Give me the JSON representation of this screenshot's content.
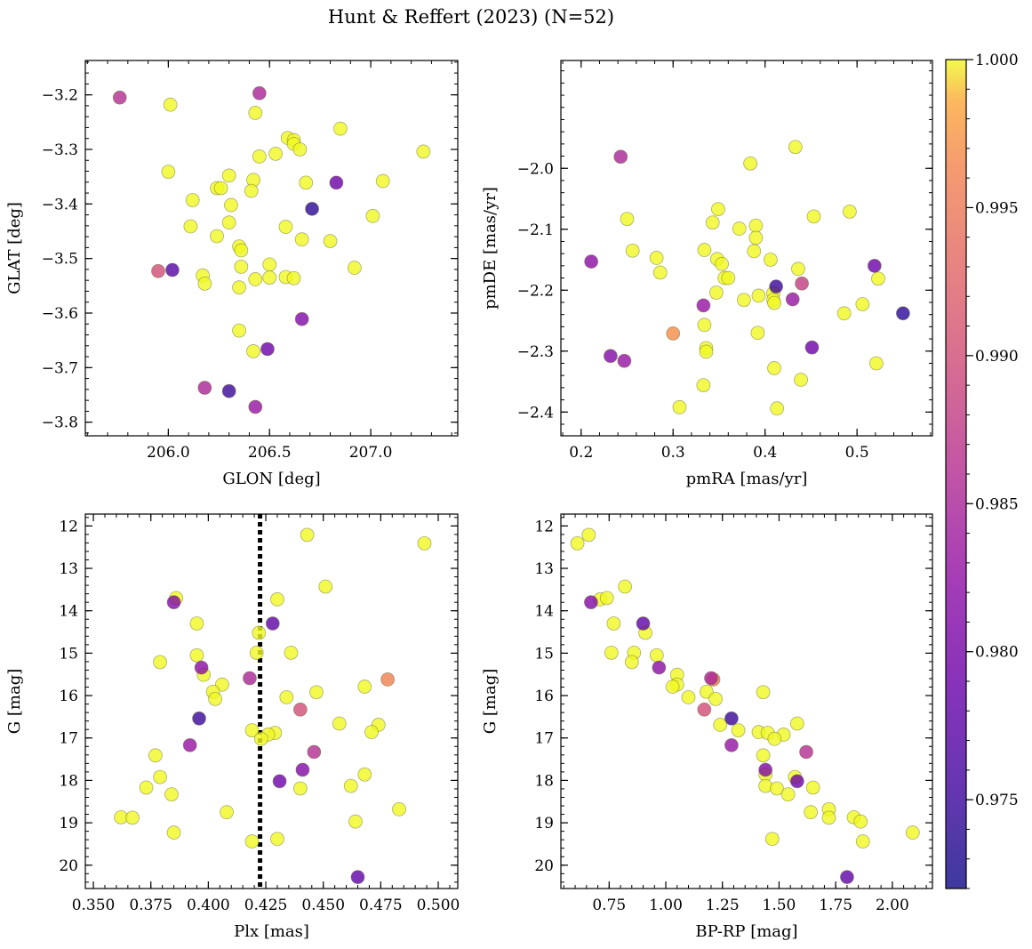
{
  "figure": {
    "title": "Hunt & Reffert (2023) (N=52)"
  },
  "colorbar": {
    "vmin": 0.972,
    "vmax": 1.0,
    "ticks": [
      "0.975",
      "0.980",
      "0.985",
      "0.990",
      "0.995",
      "1.000"
    ],
    "colormap": "plasma"
  },
  "chart_data": [
    {
      "type": "scatter",
      "title": "",
      "xlabel": "GLON [deg]",
      "ylabel": "GLAT [deg]",
      "xlim": [
        205.59,
        207.43
      ],
      "ylim": [
        -3.825,
        -3.137
      ],
      "x_inverted": false,
      "y_inverted": false,
      "xticks": [
        "206.0",
        "206.5",
        "207.0"
      ],
      "yticks": [
        "−3.8",
        "−3.7",
        "−3.6",
        "−3.5",
        "−3.4",
        "−3.3",
        "−3.2"
      ],
      "points": [
        [
          205.76,
          -3.205,
          0.986
        ],
        [
          206.01,
          -3.218,
          1.0
        ],
        [
          206.45,
          -3.197,
          0.985
        ],
        [
          206.43,
          -3.233,
          1.0
        ],
        [
          206.85,
          -3.262,
          1.0
        ],
        [
          206.59,
          -3.279,
          1.0
        ],
        [
          206.62,
          -3.283,
          1.0
        ],
        [
          206.62,
          -3.29,
          1.0
        ],
        [
          206.65,
          -3.3,
          1.0
        ],
        [
          206.53,
          -3.308,
          1.0
        ],
        [
          206.45,
          -3.313,
          1.0
        ],
        [
          207.26,
          -3.304,
          1.0
        ],
        [
          206.0,
          -3.341,
          1.0
        ],
        [
          206.3,
          -3.348,
          1.0
        ],
        [
          206.42,
          -3.356,
          1.0
        ],
        [
          206.68,
          -3.361,
          1.0
        ],
        [
          206.83,
          -3.361,
          0.979
        ],
        [
          207.06,
          -3.358,
          1.0
        ],
        [
          206.24,
          -3.371,
          1.0
        ],
        [
          206.26,
          -3.371,
          1.0
        ],
        [
          206.41,
          -3.376,
          1.0
        ],
        [
          206.12,
          -3.393,
          1.0
        ],
        [
          206.31,
          -3.402,
          1.0
        ],
        [
          206.71,
          -3.409,
          0.974
        ],
        [
          207.01,
          -3.422,
          1.0
        ],
        [
          206.3,
          -3.434,
          1.0
        ],
        [
          206.11,
          -3.441,
          1.0
        ],
        [
          206.58,
          -3.442,
          1.0
        ],
        [
          206.24,
          -3.459,
          1.0
        ],
        [
          206.66,
          -3.465,
          1.0
        ],
        [
          206.8,
          -3.468,
          1.0
        ],
        [
          206.35,
          -3.478,
          1.0
        ],
        [
          206.36,
          -3.485,
          1.0
        ],
        [
          206.5,
          -3.511,
          1.0
        ],
        [
          206.92,
          -3.517,
          1.0
        ],
        [
          206.36,
          -3.515,
          1.0
        ],
        [
          205.95,
          -3.523,
          0.99
        ],
        [
          206.02,
          -3.521,
          0.977
        ],
        [
          206.17,
          -3.531,
          1.0
        ],
        [
          206.58,
          -3.534,
          1.0
        ],
        [
          206.62,
          -3.536,
          1.0
        ],
        [
          206.43,
          -3.538,
          1.0
        ],
        [
          206.18,
          -3.546,
          1.0
        ],
        [
          206.35,
          -3.553,
          1.0
        ],
        [
          206.66,
          -3.611,
          0.981
        ],
        [
          206.35,
          -3.632,
          1.0
        ],
        [
          206.42,
          -3.67,
          1.0
        ],
        [
          206.49,
          -3.666,
          0.979
        ],
        [
          206.18,
          -3.737,
          0.985
        ],
        [
          206.3,
          -3.743,
          0.975
        ],
        [
          206.43,
          -3.772,
          0.983
        ],
        [
          206.5,
          -3.535,
          1.0
        ]
      ]
    },
    {
      "type": "scatter",
      "title": "",
      "xlabel": "pmRA [mas/yr]",
      "ylabel": "pmDE [mas/yr]",
      "xlim": [
        0.178,
        0.582
      ],
      "ylim": [
        -2.439,
        -1.823
      ],
      "x_inverted": false,
      "y_inverted": false,
      "xticks": [
        "0.2",
        "0.3",
        "0.4",
        "0.5"
      ],
      "yticks": [
        "−2.4",
        "−2.3",
        "−2.2",
        "−2.1",
        "−2.0"
      ],
      "points": [
        [
          0.433,
          -1.965,
          1.0
        ],
        [
          0.243,
          -1.981,
          0.985
        ],
        [
          0.384,
          -1.992,
          1.0
        ],
        [
          0.349,
          -2.067,
          1.0
        ],
        [
          0.492,
          -2.071,
          1.0
        ],
        [
          0.453,
          -2.079,
          1.0
        ],
        [
          0.25,
          -2.083,
          1.0
        ],
        [
          0.343,
          -2.089,
          1.0
        ],
        [
          0.39,
          -2.094,
          1.0
        ],
        [
          0.372,
          -2.099,
          1.0
        ],
        [
          0.39,
          -2.114,
          1.0
        ],
        [
          0.256,
          -2.135,
          1.0
        ],
        [
          0.334,
          -2.134,
          1.0
        ],
        [
          0.388,
          -2.136,
          1.0
        ],
        [
          0.282,
          -2.147,
          1.0
        ],
        [
          0.348,
          -2.149,
          1.0
        ],
        [
          0.406,
          -2.15,
          1.0
        ],
        [
          0.353,
          -2.157,
          1.0
        ],
        [
          0.211,
          -2.153,
          0.982
        ],
        [
          0.519,
          -2.16,
          0.979
        ],
        [
          0.436,
          -2.165,
          1.0
        ],
        [
          0.286,
          -2.171,
          1.0
        ],
        [
          0.356,
          -2.18,
          1.0
        ],
        [
          0.523,
          -2.181,
          1.0
        ],
        [
          0.44,
          -2.189,
          0.988
        ],
        [
          0.412,
          -2.194,
          0.975
        ],
        [
          0.347,
          -2.204,
          1.0
        ],
        [
          0.409,
          -2.205,
          1.0
        ],
        [
          0.393,
          -2.209,
          1.0
        ],
        [
          0.409,
          -2.216,
          1.0
        ],
        [
          0.377,
          -2.216,
          1.0
        ],
        [
          0.41,
          -2.221,
          1.0
        ],
        [
          0.43,
          -2.215,
          0.983
        ],
        [
          0.506,
          -2.223,
          1.0
        ],
        [
          0.333,
          -2.225,
          0.983
        ],
        [
          0.486,
          -2.238,
          1.0
        ],
        [
          0.55,
          -2.238,
          0.974
        ],
        [
          0.334,
          -2.257,
          1.0
        ],
        [
          0.392,
          -2.27,
          1.0
        ],
        [
          0.3,
          -2.271,
          0.997
        ],
        [
          0.451,
          -2.294,
          0.979
        ],
        [
          0.336,
          -2.295,
          1.0
        ],
        [
          0.336,
          -2.301,
          1.0
        ],
        [
          0.232,
          -2.308,
          0.981
        ],
        [
          0.247,
          -2.316,
          0.983
        ],
        [
          0.521,
          -2.32,
          1.0
        ],
        [
          0.41,
          -2.328,
          1.0
        ],
        [
          0.439,
          -2.347,
          1.0
        ],
        [
          0.333,
          -2.356,
          1.0
        ],
        [
          0.307,
          -2.392,
          1.0
        ],
        [
          0.413,
          -2.394,
          1.0
        ],
        [
          0.36,
          -2.18,
          1.0
        ]
      ]
    },
    {
      "type": "scatter",
      "title": "",
      "xlabel": "Plx [mas]",
      "ylabel": "G [mag]",
      "xlim": [
        0.3465,
        0.5085
      ],
      "ylim": [
        20.55,
        11.72
      ],
      "x_inverted": false,
      "y_inverted": true,
      "xticks": [
        "0.350",
        "0.375",
        "0.400",
        "0.425",
        "0.450",
        "0.475",
        "0.500"
      ],
      "yticks": [
        "12",
        "13",
        "14",
        "15",
        "16",
        "17",
        "18",
        "19",
        "20"
      ],
      "vline": {
        "x": 0.4225,
        "style": "dotted",
        "color": "#000000"
      },
      "points": [
        [
          0.443,
          12.21,
          1.0
        ],
        [
          0.494,
          12.41,
          1.0
        ],
        [
          0.451,
          13.43,
          1.0
        ],
        [
          0.43,
          13.73,
          1.0
        ],
        [
          0.386,
          13.7,
          1.0
        ],
        [
          0.385,
          13.8,
          0.981
        ],
        [
          0.395,
          14.3,
          1.0
        ],
        [
          0.428,
          14.3,
          0.978
        ],
        [
          0.422,
          14.52,
          1.0
        ],
        [
          0.395,
          15.05,
          1.0
        ],
        [
          0.421,
          14.99,
          1.0
        ],
        [
          0.436,
          14.99,
          1.0
        ],
        [
          0.379,
          15.21,
          1.0
        ],
        [
          0.397,
          15.34,
          0.982
        ],
        [
          0.398,
          15.51,
          1.0
        ],
        [
          0.418,
          15.59,
          0.985
        ],
        [
          0.478,
          15.62,
          0.996
        ],
        [
          0.406,
          15.74,
          1.0
        ],
        [
          0.468,
          15.79,
          1.0
        ],
        [
          0.402,
          15.91,
          1.0
        ],
        [
          0.447,
          15.92,
          1.0
        ],
        [
          0.434,
          16.04,
          1.0
        ],
        [
          0.403,
          16.08,
          1.0
        ],
        [
          0.44,
          16.33,
          0.99
        ],
        [
          0.396,
          16.54,
          0.975
        ],
        [
          0.457,
          16.66,
          1.0
        ],
        [
          0.474,
          16.69,
          1.0
        ],
        [
          0.419,
          16.82,
          1.0
        ],
        [
          0.471,
          16.86,
          1.0
        ],
        [
          0.429,
          16.88,
          1.0
        ],
        [
          0.426,
          16.92,
          1.0
        ],
        [
          0.423,
          17.02,
          1.0
        ],
        [
          0.392,
          17.17,
          0.983
        ],
        [
          0.446,
          17.33,
          0.986
        ],
        [
          0.377,
          17.41,
          1.0
        ],
        [
          0.441,
          17.75,
          0.981
        ],
        [
          0.468,
          17.86,
          1.0
        ],
        [
          0.379,
          17.92,
          1.0
        ],
        [
          0.431,
          18.02,
          0.979
        ],
        [
          0.373,
          18.17,
          1.0
        ],
        [
          0.462,
          18.13,
          1.0
        ],
        [
          0.44,
          18.19,
          1.0
        ],
        [
          0.384,
          18.33,
          1.0
        ],
        [
          0.483,
          18.68,
          1.0
        ],
        [
          0.408,
          18.75,
          1.0
        ],
        [
          0.362,
          18.87,
          1.0
        ],
        [
          0.367,
          18.88,
          1.0
        ],
        [
          0.464,
          18.97,
          1.0
        ],
        [
          0.385,
          19.23,
          1.0
        ],
        [
          0.43,
          19.38,
          1.0
        ],
        [
          0.419,
          19.44,
          1.0
        ],
        [
          0.465,
          20.28,
          0.978
        ]
      ]
    },
    {
      "type": "scatter",
      "title": "",
      "xlabel": "BP-RP [mag]",
      "ylabel": "G [mag]",
      "xlim": [
        0.537,
        2.177
      ],
      "ylim": [
        20.55,
        11.72
      ],
      "x_inverted": false,
      "y_inverted": true,
      "xticks": [
        "0.75",
        "1.00",
        "1.25",
        "1.50",
        "1.75",
        "2.00"
      ],
      "yticks": [
        "12",
        "13",
        "14",
        "15",
        "16",
        "17",
        "18",
        "19",
        "20"
      ],
      "points": [
        [
          0.66,
          12.21,
          1.0
        ],
        [
          0.61,
          12.41,
          1.0
        ],
        [
          0.82,
          13.43,
          1.0
        ],
        [
          0.67,
          13.8,
          0.981
        ],
        [
          0.71,
          13.73,
          1.0
        ],
        [
          0.74,
          13.7,
          1.0
        ],
        [
          0.77,
          14.3,
          1.0
        ],
        [
          0.9,
          14.3,
          0.978
        ],
        [
          0.91,
          14.52,
          1.0
        ],
        [
          0.96,
          15.05,
          1.0
        ],
        [
          0.86,
          14.99,
          1.0
        ],
        [
          0.76,
          14.99,
          1.0
        ],
        [
          0.85,
          15.21,
          1.0
        ],
        [
          0.97,
          15.34,
          0.982
        ],
        [
          1.05,
          15.51,
          1.0
        ],
        [
          1.2,
          15.59,
          0.985
        ],
        [
          1.21,
          15.62,
          0.996
        ],
        [
          1.05,
          15.74,
          1.0
        ],
        [
          1.03,
          15.79,
          1.0
        ],
        [
          1.18,
          15.91,
          1.0
        ],
        [
          1.43,
          15.92,
          1.0
        ],
        [
          1.1,
          16.04,
          1.0
        ],
        [
          1.22,
          16.08,
          1.0
        ],
        [
          1.17,
          16.33,
          0.99
        ],
        [
          1.29,
          16.54,
          0.975
        ],
        [
          1.58,
          16.66,
          1.0
        ],
        [
          1.24,
          16.69,
          1.0
        ],
        [
          1.32,
          16.82,
          1.0
        ],
        [
          1.41,
          16.86,
          1.0
        ],
        [
          1.45,
          16.88,
          1.0
        ],
        [
          1.52,
          16.92,
          1.0
        ],
        [
          1.48,
          17.02,
          1.0
        ],
        [
          1.29,
          17.17,
          0.983
        ],
        [
          1.62,
          17.33,
          0.986
        ],
        [
          1.43,
          17.41,
          1.0
        ],
        [
          1.44,
          17.75,
          0.981
        ],
        [
          1.44,
          17.86,
          1.0
        ],
        [
          1.57,
          17.92,
          1.0
        ],
        [
          1.58,
          18.02,
          0.979
        ],
        [
          1.65,
          18.17,
          1.0
        ],
        [
          1.44,
          18.13,
          1.0
        ],
        [
          1.49,
          18.19,
          1.0
        ],
        [
          1.54,
          18.33,
          1.0
        ],
        [
          1.72,
          18.68,
          1.0
        ],
        [
          1.64,
          18.75,
          1.0
        ],
        [
          1.83,
          18.87,
          1.0
        ],
        [
          1.72,
          18.88,
          1.0
        ],
        [
          1.86,
          18.97,
          1.0
        ],
        [
          2.09,
          19.23,
          1.0
        ],
        [
          1.47,
          19.38,
          1.0
        ],
        [
          1.87,
          19.44,
          1.0
        ],
        [
          1.8,
          20.28,
          0.978
        ]
      ]
    }
  ]
}
